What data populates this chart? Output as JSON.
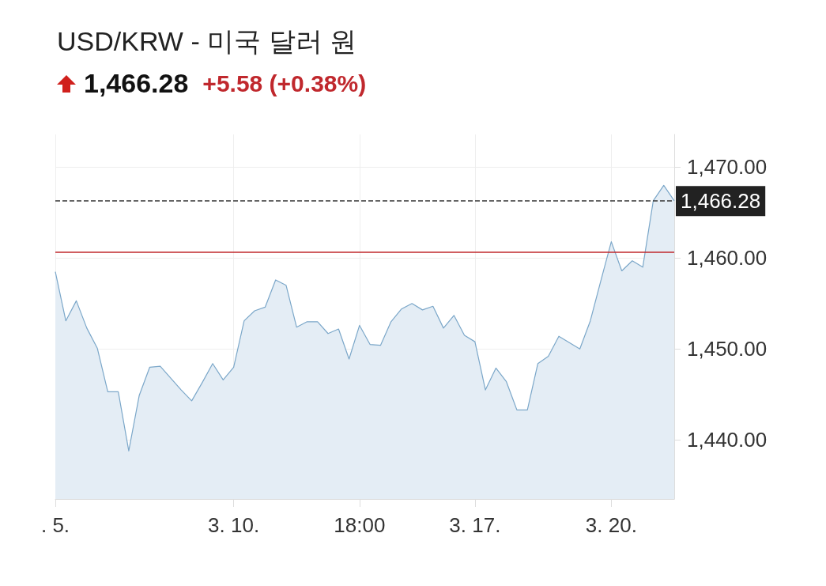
{
  "chart_data": {
    "type": "area",
    "title": "USD/KRW - 미국 달러 원",
    "subtitle": "1,466.28",
    "annotations": [
      "+5.58 (+0.38%)"
    ],
    "categories": [
      ". 5.",
      null,
      null,
      null,
      null,
      null,
      null,
      null,
      null,
      null,
      null,
      null,
      null,
      null,
      null,
      null,
      null,
      "3. 10.",
      null,
      null,
      null,
      null,
      null,
      null,
      null,
      null,
      null,
      null,
      null,
      "18:00",
      null,
      null,
      null,
      null,
      null,
      null,
      null,
      null,
      null,
      null,
      "3. 17.",
      null,
      null,
      null,
      null,
      null,
      null,
      null,
      null,
      null,
      null,
      null,
      null,
      "3. 20.",
      null,
      null,
      null,
      null,
      null,
      null
    ],
    "series": [
      {
        "color": "#7ba7c9",
        "values": [
          1458.5,
          1453.1,
          1455.3,
          1452.3,
          1450.1,
          1445.3,
          1445.3,
          1438.8,
          1444.9,
          1448.0,
          1448.1,
          1446.8,
          1445.5,
          1444.3,
          1446.3,
          1448.4,
          1446.6,
          1448.0,
          1453.1,
          1454.2,
          1454.6,
          1457.6,
          1457.0,
          1452.4,
          1453.0,
          1453.0,
          1451.7,
          1452.2,
          1448.9,
          1452.6,
          1450.5,
          1450.4,
          1453.0,
          1454.4,
          1455.0,
          1454.3,
          1454.7,
          1452.3,
          1453.7,
          1451.5,
          1450.8,
          1445.5,
          1447.9,
          1446.4,
          1443.3,
          1443.3,
          1448.4,
          1449.2,
          1451.4,
          1450.7,
          1450.0,
          1453.1,
          1457.5,
          1461.8,
          1458.6,
          1459.7,
          1459.0,
          1466.3,
          1468.0,
          1466.3
        ]
      }
    ],
    "ylim": [
      1433.5,
      1473.6
    ],
    "yticks": [
      {
        "value": 1440,
        "label": "1,440.00"
      },
      {
        "value": 1450,
        "label": "1,450.00"
      },
      {
        "value": 1460,
        "label": "1,460.00"
      },
      {
        "value": 1470,
        "label": "1,470.00"
      }
    ],
    "ref_lines": [
      {
        "axis": "y",
        "value": 1466.28,
        "label": "1,466.28",
        "color": "#333333",
        "line_style": "dashed"
      },
      {
        "axis": "y",
        "value": 1460.7,
        "color": "#c0282d",
        "line_style": "solid"
      }
    ],
    "grid": true,
    "marker": "none",
    "line_style": "solid"
  }
}
